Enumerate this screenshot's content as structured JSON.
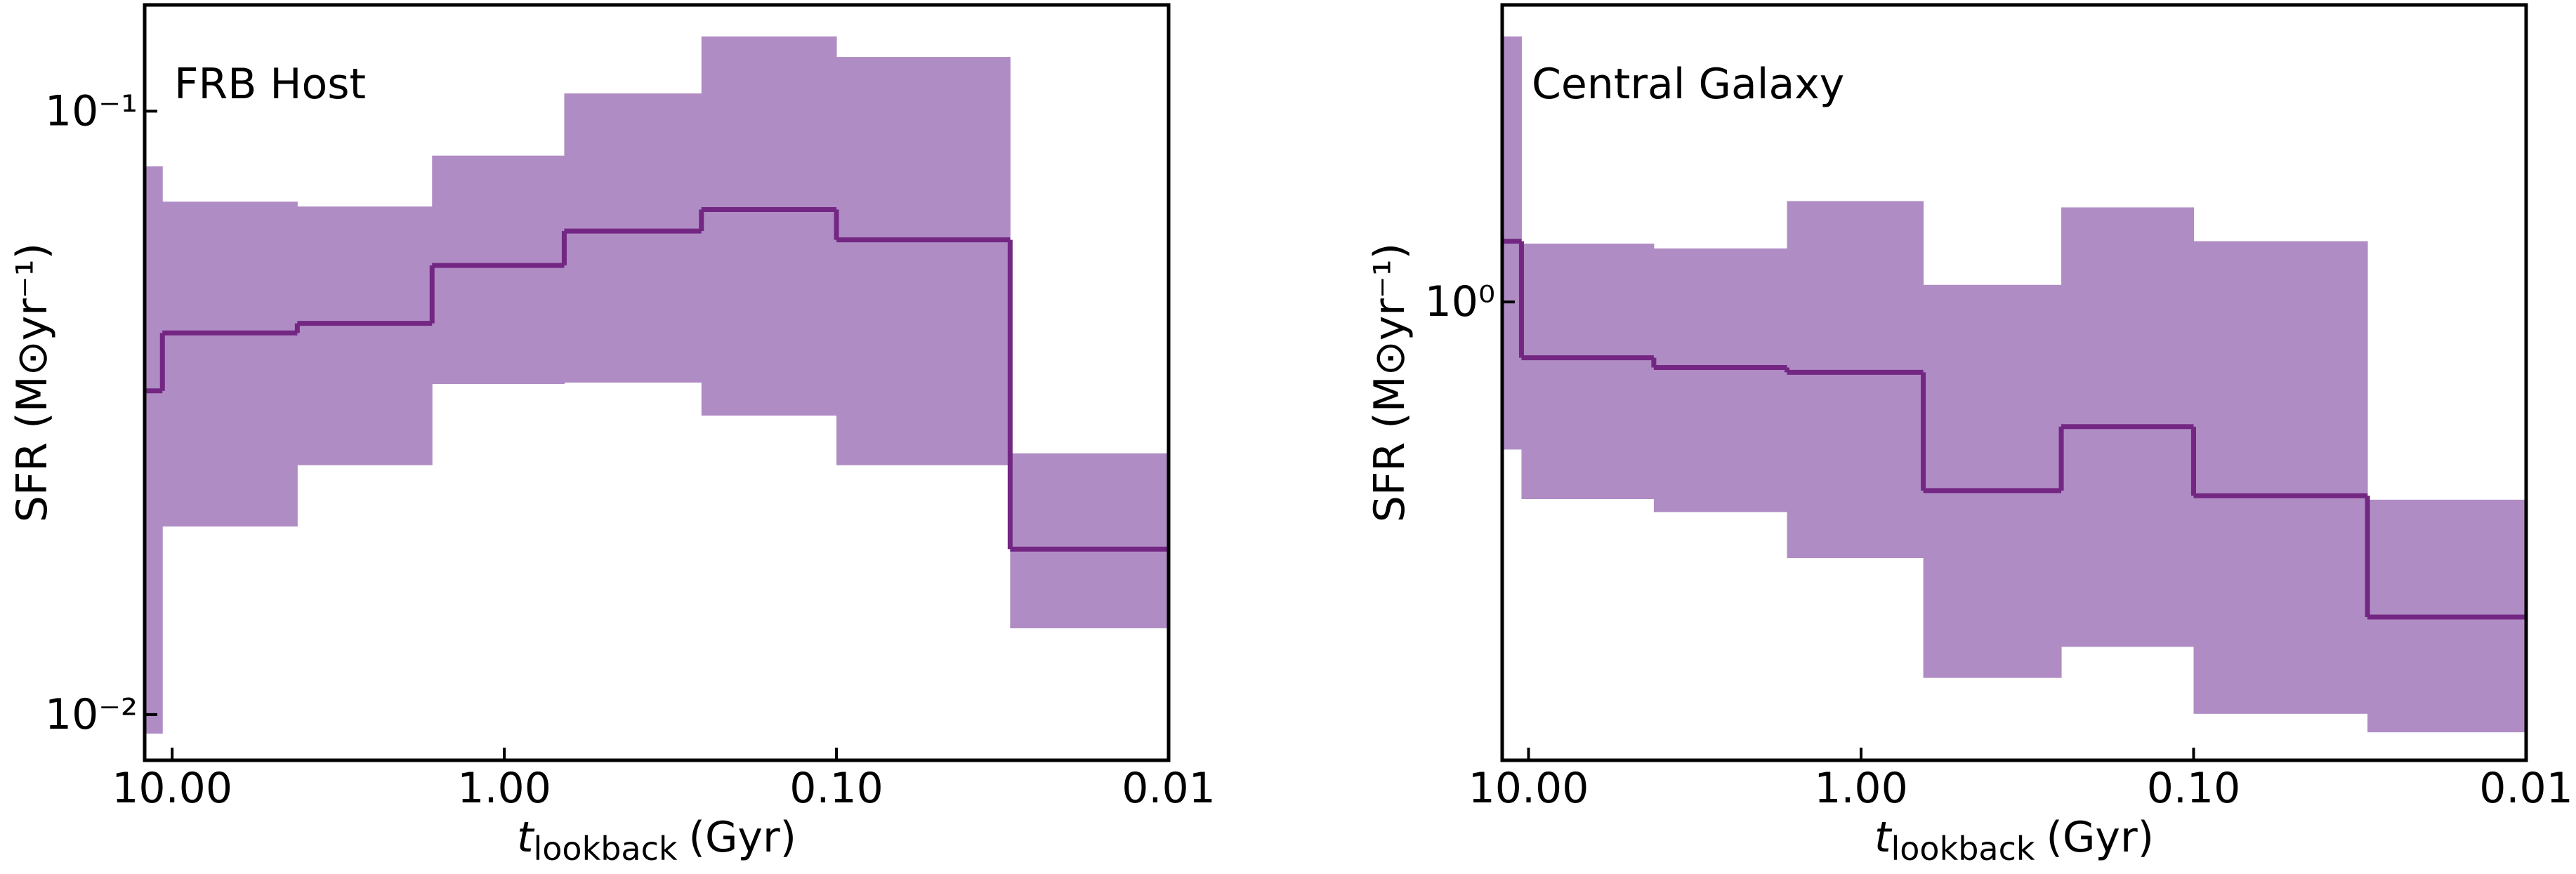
{
  "chart_data": [
    {
      "type": "step-band",
      "annotation": "FRB Host",
      "xlabel": {
        "symbol": "t",
        "subscript": "lookback",
        "unit": "(Gyr)"
      },
      "ylabel": "SFR (M⊙yr⁻¹)",
      "xscale": "log",
      "yscale": "log",
      "xlim": [
        12.1,
        0.01
      ],
      "ylim": [
        0.0084,
        0.15
      ],
      "xticks": [
        {
          "value": 10,
          "label": "10.00"
        },
        {
          "value": 1,
          "label": "1.00"
        },
        {
          "value": 0.1,
          "label": "0.10"
        },
        {
          "value": 0.01,
          "label": "0.01"
        }
      ],
      "yticks": [
        {
          "value": 0.01,
          "label": "10⁻²"
        },
        {
          "value": 0.1,
          "label": "10⁻¹"
        }
      ],
      "bins": [
        12.1,
        10.7,
        4.2,
        1.65,
        0.66,
        0.255,
        0.1,
        0.03,
        0.01
      ],
      "band": {
        "color": "#b08cc4",
        "lower": [
          0.0093,
          0.0205,
          0.0259,
          0.0353,
          0.0355,
          0.0313,
          0.0259,
          0.0139
        ],
        "upper": [
          0.081,
          0.0708,
          0.0695,
          0.0844,
          0.107,
          0.133,
          0.123,
          0.0271
        ]
      },
      "median": {
        "color": "#732783",
        "values": [
          0.0344,
          0.0429,
          0.0445,
          0.0555,
          0.0633,
          0.0687,
          0.0612,
          0.0188
        ]
      }
    },
    {
      "type": "step-band",
      "annotation": "Central Galaxy",
      "xlabel": {
        "symbol": "t",
        "subscript": "lookback",
        "unit": "(Gyr)"
      },
      "ylabel": "SFR (M⊙yr⁻¹)",
      "xscale": "log",
      "yscale": "log",
      "xlim": [
        12.0,
        0.01
      ],
      "ylim": [
        0.21,
        2.75
      ],
      "xticks": [
        {
          "value": 10,
          "label": "10.00"
        },
        {
          "value": 1,
          "label": "1.00"
        },
        {
          "value": 0.1,
          "label": "0.10"
        },
        {
          "value": 0.01,
          "label": "0.01"
        }
      ],
      "yticks": [
        {
          "value": 1,
          "label": "10⁰"
        }
      ],
      "bins": [
        12.0,
        10.5,
        4.2,
        1.67,
        0.65,
        0.25,
        0.1,
        0.03,
        0.01
      ],
      "band": {
        "color": "#b08cc4",
        "lower": [
          0.605,
          0.511,
          0.489,
          0.418,
          0.278,
          0.309,
          0.246,
          0.231
        ],
        "upper": [
          2.47,
          1.22,
          1.2,
          1.41,
          1.06,
          1.38,
          1.23,
          0.51
        ]
      },
      "median": {
        "color": "#732783",
        "values": [
          1.23,
          0.827,
          0.8,
          0.787,
          0.526,
          0.654,
          0.517,
          0.342
        ]
      }
    }
  ]
}
